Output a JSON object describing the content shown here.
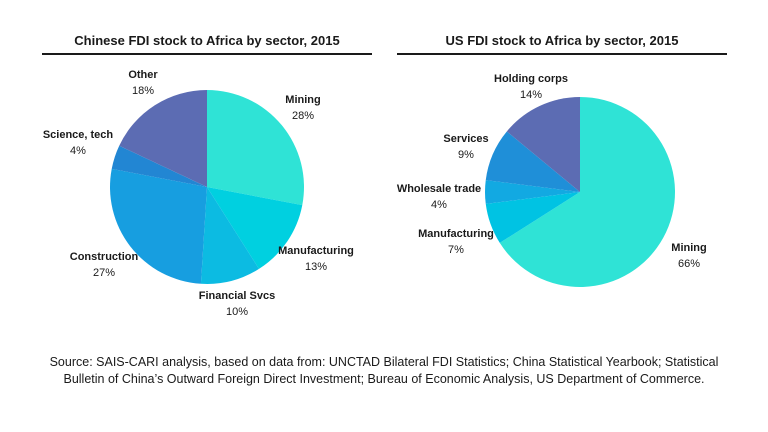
{
  "chart_data": [
    {
      "type": "pie",
      "title": "Chinese FDI stock to Africa by sector, 2015",
      "slices": [
        {
          "name": "Mining",
          "pct_label": "28%",
          "value": 28,
          "color": "#2fe3d6"
        },
        {
          "name": "Manufacturing",
          "pct_label": "13%",
          "value": 13,
          "color": "#00d0e0"
        },
        {
          "name": "Financial Svcs",
          "pct_label": "10%",
          "value": 10,
          "color": "#0cbbe2"
        },
        {
          "name": "Construction",
          "pct_label": "27%",
          "value": 27,
          "color": "#179ee0"
        },
        {
          "name": "Science, tech",
          "pct_label": "4%",
          "value": 4,
          "color": "#2286d3"
        },
        {
          "name": "Other",
          "pct_label": "18%",
          "value": 18,
          "color": "#5c6cb3"
        }
      ]
    },
    {
      "type": "pie",
      "title": "US FDI stock to Africa by sector, 2015",
      "slices": [
        {
          "name": "Mining",
          "pct_label": "66%",
          "value": 66,
          "color": "#2fe3d6"
        },
        {
          "name": "Manufacturing",
          "pct_label": "7%",
          "value": 7,
          "color": "#00c3e3"
        },
        {
          "name": "Wholesale trade",
          "pct_label": "4%",
          "value": 4,
          "color": "#12a9e2"
        },
        {
          "name": "Services",
          "pct_label": "9%",
          "value": 9,
          "color": "#1f8fd8"
        },
        {
          "name": "Holding corps",
          "pct_label": "14%",
          "value": 14,
          "color": "#5c6cb3"
        }
      ]
    }
  ],
  "source": {
    "line1": "Source: SAIS-CARI analysis, based on data from: UNCTAD Bilateral FDI Statistics; China Statistical Yearbook; Statistical",
    "line2": "Bulletin of China’s Outward Foreign Direct Investment; Bureau of Economic Analysis, US Department of Commerce."
  }
}
